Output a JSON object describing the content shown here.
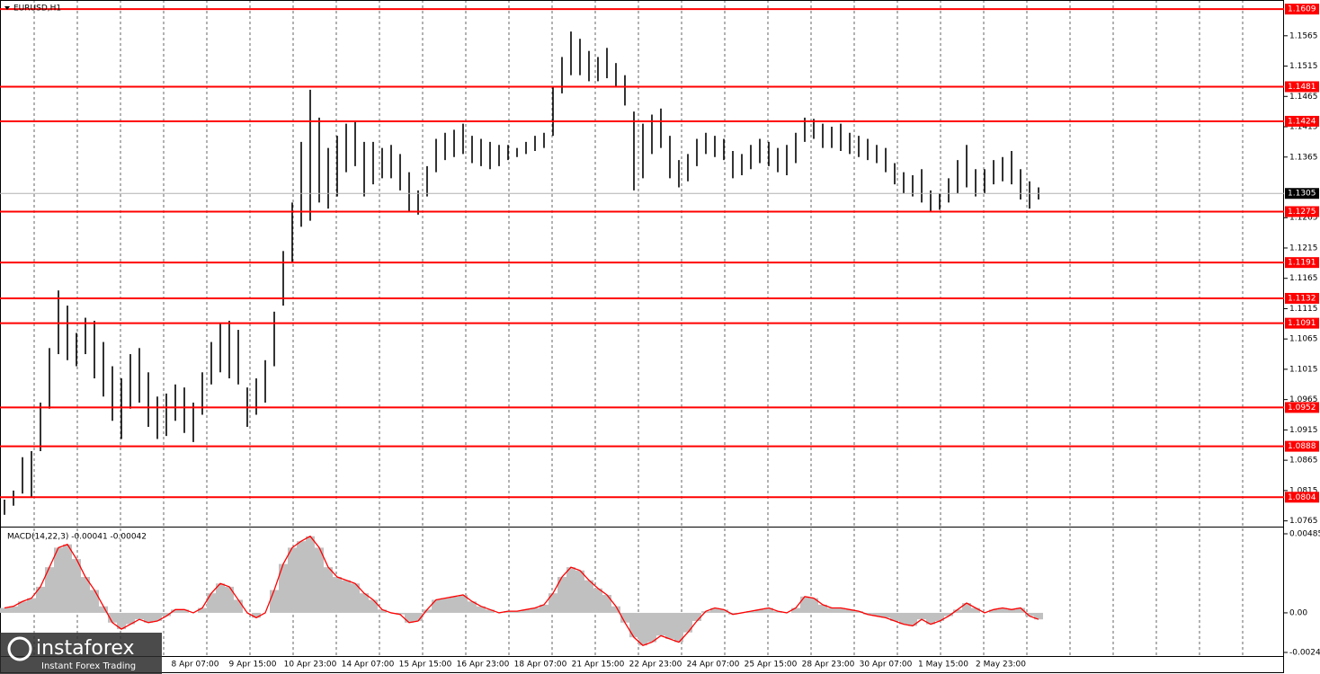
{
  "chart_data": [
    {
      "type": "range",
      "title": "EURUSD,H1",
      "color": "#000000",
      "low": [
        1.0775,
        1.079,
        1.081,
        1.0805,
        1.088,
        1.095,
        1.104,
        1.103,
        1.102,
        1.104,
        1.1,
        1.097,
        1.093,
        1.09,
        1.095,
        1.096,
        1.092,
        1.09,
        1.0905,
        1.093,
        1.091,
        1.0895,
        1.094,
        1.099,
        1.101,
        1.1,
        1.099,
        1.092,
        1.094,
        1.096,
        1.102,
        1.112,
        1.119,
        1.125,
        1.126,
        1.129,
        1.128,
        1.13,
        1.134,
        1.135,
        1.13,
        1.132,
        1.133,
        1.133,
        1.131,
        1.1275,
        1.127,
        1.13,
        1.134,
        1.136,
        1.1365,
        1.137,
        1.1355,
        1.135,
        1.1345,
        1.135,
        1.136,
        1.1365,
        1.137,
        1.1375,
        1.138,
        1.14,
        1.147,
        1.15,
        1.15,
        1.149,
        1.149,
        1.1495,
        1.148,
        1.145,
        1.131,
        1.133,
        1.137,
        1.138,
        1.133,
        1.1315,
        1.1325,
        1.135,
        1.137,
        1.1365,
        1.136,
        1.133,
        1.1335,
        1.1345,
        1.1355,
        1.135,
        1.134,
        1.1335,
        1.1355,
        1.139,
        1.1395,
        1.138,
        1.138,
        1.1375,
        1.137,
        1.1365,
        1.136,
        1.1355,
        1.134,
        1.132,
        1.1305,
        1.13,
        1.129,
        1.1275,
        1.1278,
        1.129,
        1.1305,
        1.1315,
        1.13,
        1.1305,
        1.132,
        1.1325,
        1.132,
        1.1295,
        1.128,
        1.1295
      ],
      "high": [
        1.08,
        1.0815,
        1.087,
        1.088,
        1.096,
        1.105,
        1.1145,
        1.112,
        1.1075,
        1.11,
        1.1095,
        1.106,
        1.102,
        1.1,
        1.104,
        1.105,
        1.101,
        1.097,
        1.0975,
        1.099,
        1.0985,
        1.096,
        1.101,
        1.106,
        1.109,
        1.1095,
        1.108,
        1.0985,
        1.1,
        1.103,
        1.111,
        1.121,
        1.129,
        1.139,
        1.1476,
        1.143,
        1.138,
        1.14,
        1.142,
        1.1425,
        1.139,
        1.139,
        1.138,
        1.1385,
        1.137,
        1.134,
        1.131,
        1.135,
        1.1395,
        1.1405,
        1.141,
        1.142,
        1.14,
        1.1395,
        1.139,
        1.1385,
        1.1385,
        1.138,
        1.139,
        1.14,
        1.1405,
        1.148,
        1.153,
        1.1572,
        1.156,
        1.154,
        1.153,
        1.1545,
        1.152,
        1.15,
        1.144,
        1.142,
        1.1435,
        1.1445,
        1.14,
        1.136,
        1.137,
        1.1395,
        1.1405,
        1.14,
        1.1395,
        1.1375,
        1.137,
        1.1385,
        1.1395,
        1.139,
        1.138,
        1.1385,
        1.1405,
        1.143,
        1.1428,
        1.142,
        1.1415,
        1.142,
        1.1405,
        1.14,
        1.1395,
        1.1385,
        1.138,
        1.1355,
        1.134,
        1.1335,
        1.1345,
        1.131,
        1.1305,
        1.133,
        1.136,
        1.1385,
        1.1345,
        1.1345,
        1.136,
        1.1365,
        1.1375,
        1.1345,
        1.1325,
        1.1315
      ],
      "ylim": [
        1.0757,
        1.1624
      ],
      "yticks": [
        1.1565,
        1.1515,
        1.1465,
        1.1415,
        1.1365,
        1.1265,
        1.1215,
        1.1165,
        1.1115,
        1.1065,
        1.1015,
        1.0965,
        1.0915,
        1.0865,
        1.0815,
        1.0765
      ],
      "levels": [
        1.1609,
        1.1481,
        1.1424,
        1.1275,
        1.1191,
        1.1132,
        1.1091,
        1.0952,
        1.0888,
        1.0804
      ],
      "level_color": "#ff0000",
      "current_price": 1.1305,
      "time_labels": [
        "8 Apr 07:00",
        "9 Apr 15:00",
        "10 Apr 23:00",
        "14 Apr 07:00",
        "15 Apr 15:00",
        "16 Apr 23:00",
        "18 Apr 07:00",
        "21 Apr 15:00",
        "22 Apr 23:00",
        "24 Apr 07:00",
        "25 Apr 15:00",
        "28 Apr 23:00",
        "30 Apr 07:00",
        "1 May 15:00",
        "2 May 23:00"
      ]
    },
    {
      "type": "macd",
      "title": "MACD(14,22,3) -0.00041 -0.00042",
      "color": "#c0c0c0",
      "line_color": "#ff0000",
      "values": [
        0.0003,
        0.0004,
        0.0007,
        0.0009,
        0.0016,
        0.0028,
        0.004,
        0.0042,
        0.0033,
        0.0022,
        0.0014,
        0.0004,
        -0.0006,
        -0.001,
        -0.0007,
        -0.0004,
        -0.0006,
        -0.0005,
        -0.0002,
        0.0002,
        0.0002,
        0.0,
        0.0003,
        0.0012,
        0.0018,
        0.0016,
        0.0008,
        0.0,
        -0.0003,
        0.0,
        0.0014,
        0.003,
        0.004,
        0.0044,
        0.0047,
        0.004,
        0.0028,
        0.0022,
        0.002,
        0.0018,
        0.0012,
        0.0008,
        0.0002,
        0.0,
        -0.0001,
        -0.0006,
        -0.0005,
        0.0002,
        0.0008,
        0.0009,
        0.001,
        0.0011,
        0.0007,
        0.0004,
        0.0002,
        0.0,
        0.0001,
        0.0001,
        0.0002,
        0.0003,
        0.0005,
        0.0012,
        0.0022,
        0.0028,
        0.0026,
        0.002,
        0.0015,
        0.0011,
        0.0004,
        -0.0006,
        -0.0015,
        -0.002,
        -0.0018,
        -0.0014,
        -0.0016,
        -0.0018,
        -0.0012,
        -0.0005,
        0.0001,
        0.0003,
        0.0002,
        -0.0001,
        0.0,
        0.0001,
        0.0002,
        0.0003,
        0.0001,
        0.0,
        0.0003,
        0.001,
        0.0009,
        0.0005,
        0.0003,
        0.0003,
        0.0002,
        0.0001,
        -0.0001,
        -0.0002,
        -0.0003,
        -0.0005,
        -0.0007,
        -0.0008,
        -0.0004,
        -0.0007,
        -0.0005,
        -0.0002,
        0.0002,
        0.0006,
        0.0003,
        0.0,
        0.0002,
        0.0003,
        0.0002,
        0.0003,
        -0.0002,
        -0.0004
      ],
      "ylim": [
        -0.00265,
        0.00518
      ],
      "yticks": [
        0.00485,
        {
          "value": 0,
          "label": "0.00"
        },
        -0.00243
      ]
    }
  ],
  "watermark": {
    "brand": "instaforex",
    "tagline": "Instant Forex Trading"
  }
}
